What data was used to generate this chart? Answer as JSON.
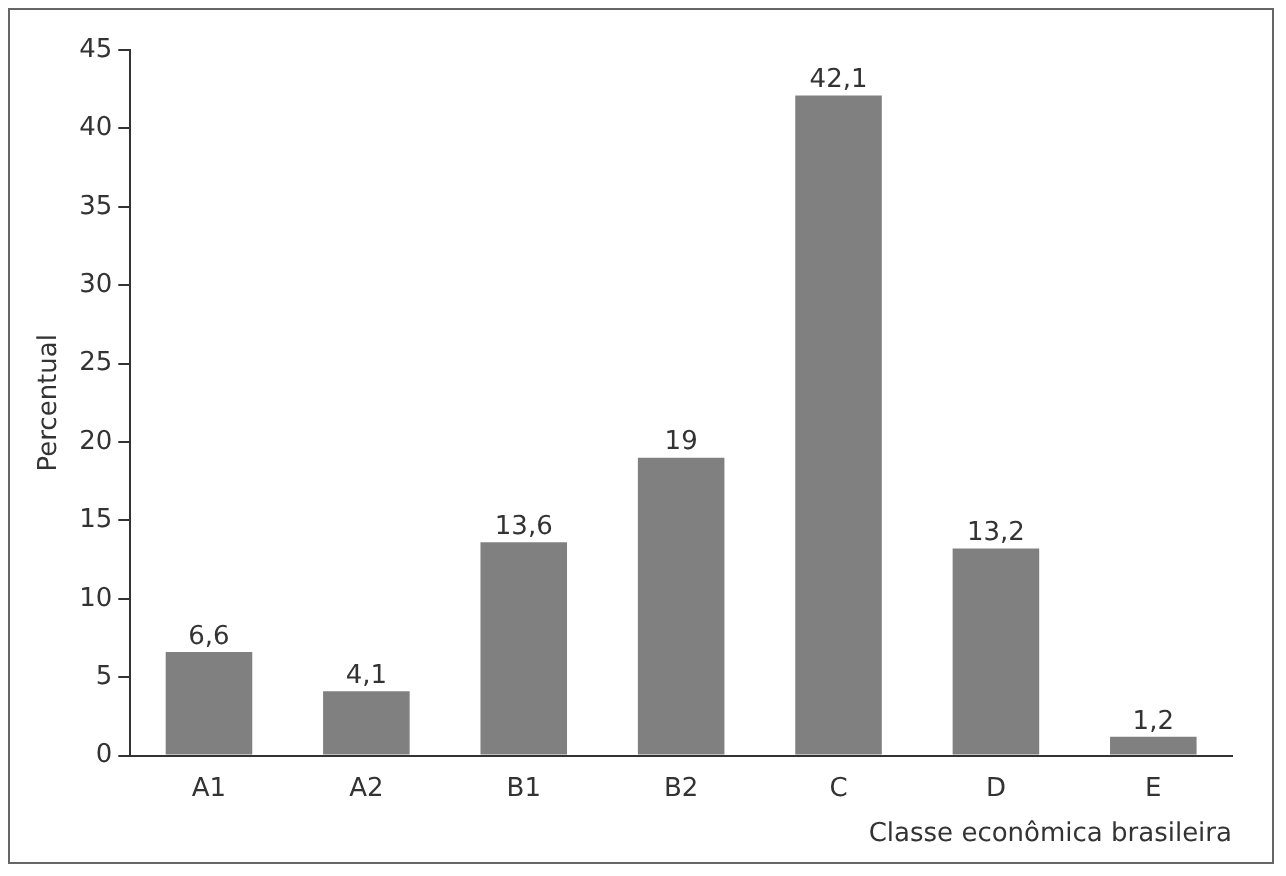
{
  "chart_data": {
    "type": "bar",
    "xlabel": "Classe econômica brasileira",
    "ylabel": "Percentual",
    "categories": [
      "A1",
      "A2",
      "B1",
      "B2",
      "C",
      "D",
      "E"
    ],
    "values": [
      6.6,
      4.1,
      13.6,
      19,
      42.1,
      13.2,
      1.2
    ],
    "value_labels": [
      "6,6",
      "4,1",
      "13,6",
      "19",
      "42,1",
      "13,2",
      "1,2"
    ],
    "color": "#808080",
    "ylim": [
      0,
      45
    ],
    "yticks": [
      0,
      5,
      10,
      15,
      20,
      25,
      30,
      35,
      40,
      45
    ],
    "grid": false,
    "legend": false
  }
}
